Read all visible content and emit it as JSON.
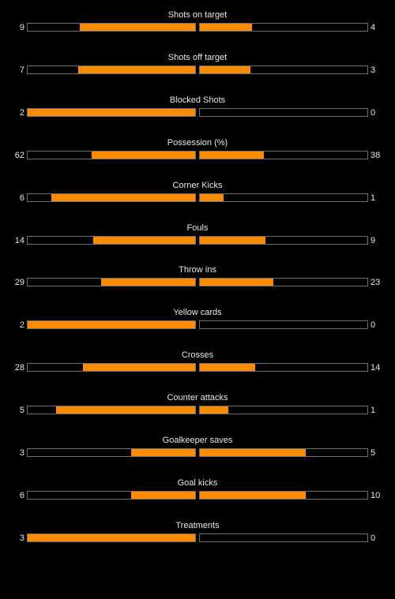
{
  "colors": {
    "background": "#000000",
    "fill": "#ff8c00",
    "bar_border": "#6e6e6e",
    "text": "#e8e8e8"
  },
  "stats": [
    {
      "label": "Shots on target",
      "home": "9",
      "away": "4",
      "home_fill": 0.69,
      "away_fill": 0.31
    },
    {
      "label": "Shots off target",
      "home": "7",
      "away": "3",
      "home_fill": 0.7,
      "away_fill": 0.3
    },
    {
      "label": "Blocked Shots",
      "home": "2",
      "away": "0",
      "home_fill": 1.0,
      "away_fill": 0.0
    },
    {
      "label": "Possession (%)",
      "home": "62",
      "away": "38",
      "home_fill": 0.62,
      "away_fill": 0.38
    },
    {
      "label": "Corner Kicks",
      "home": "6",
      "away": "1",
      "home_fill": 0.86,
      "away_fill": 0.14
    },
    {
      "label": "Fouls",
      "home": "14",
      "away": "9",
      "home_fill": 0.61,
      "away_fill": 0.39
    },
    {
      "label": "Throw ins",
      "home": "29",
      "away": "23",
      "home_fill": 0.56,
      "away_fill": 0.44
    },
    {
      "label": "Yellow cards",
      "home": "2",
      "away": "0",
      "home_fill": 1.0,
      "away_fill": 0.0
    },
    {
      "label": "Crosses",
      "home": "28",
      "away": "14",
      "home_fill": 0.67,
      "away_fill": 0.33
    },
    {
      "label": "Counter attacks",
      "home": "5",
      "away": "1",
      "home_fill": 0.83,
      "away_fill": 0.17
    },
    {
      "label": "Goalkeeper saves",
      "home": "3",
      "away": "5",
      "home_fill": 0.38,
      "away_fill": 0.63
    },
    {
      "label": "Goal kicks",
      "home": "6",
      "away": "10",
      "home_fill": 0.38,
      "away_fill": 0.63
    },
    {
      "label": "Treatments",
      "home": "3",
      "away": "0",
      "home_fill": 1.0,
      "away_fill": 0.0
    }
  ]
}
